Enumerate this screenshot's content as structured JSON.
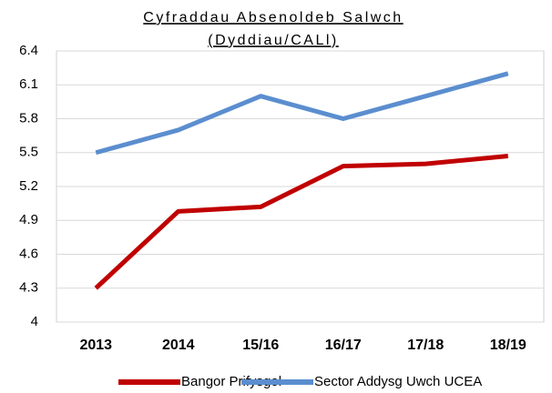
{
  "chart_data": {
    "type": "line",
    "title": "Cyfraddau Absenoldeb Salwch",
    "subtitle": "(Dyddiau/CALl)",
    "categories": [
      "2013",
      "2014",
      "15/16",
      "16/17",
      "17/18",
      "18/19"
    ],
    "series": [
      {
        "name": "Bangor Prifysgol",
        "color": "#c00000",
        "values": [
          4.3,
          4.98,
          5.02,
          5.38,
          5.4,
          5.47
        ]
      },
      {
        "name": "Sector Addysg Uwch UCEA",
        "color": "#5b8ecf",
        "values": [
          5.5,
          5.7,
          6.0,
          5.8,
          6.0,
          6.2
        ]
      }
    ],
    "ylim": [
      4,
      6.4
    ],
    "yticks": [
      4,
      4.3,
      4.6,
      4.9,
      5.2,
      5.5,
      5.8,
      6.1,
      6.4
    ],
    "grid": true,
    "legend": "bottom"
  }
}
